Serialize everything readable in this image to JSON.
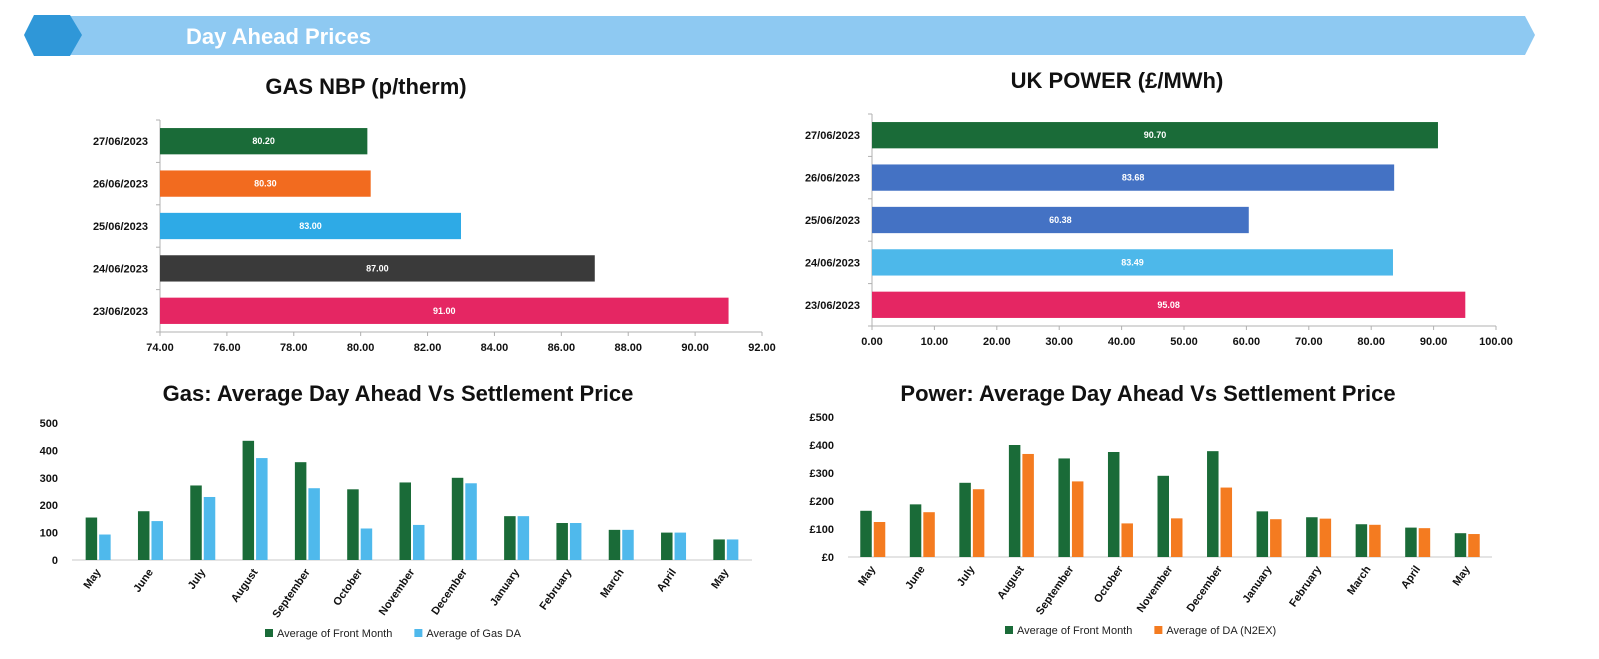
{
  "header": {
    "title": "Day Ahead Prices",
    "band_color": "#8ec9f2",
    "cap_color": "#2f97d8"
  },
  "colors": {
    "green": "#1a6b38",
    "orange": "#f26b1f",
    "sky": "#2eaae6",
    "dark": "#3a3a3a",
    "pink": "#e52663",
    "blue": "#4472c4",
    "light_blue": "#4db8ea",
    "bar_orange": "#f47b20",
    "bar_sky": "#4fb9ec"
  },
  "chart_data": [
    {
      "type": "bar",
      "orientation": "horizontal",
      "title": "GAS NBP (p/therm)",
      "categories": [
        "27/06/2023",
        "26/06/2023",
        "25/06/2023",
        "24/06/2023",
        "23/06/2023"
      ],
      "values": [
        80.2,
        80.3,
        83.0,
        87.0,
        91.0
      ],
      "value_labels": [
        "80.20",
        "80.30",
        "83.00",
        "87.00",
        "91.00"
      ],
      "bar_colors": [
        "#1a6b38",
        "#f26b1f",
        "#2eaae6",
        "#3a3a3a",
        "#e52663"
      ],
      "xlim": [
        74,
        92
      ],
      "x_ticks": [
        "74.00",
        "76.00",
        "78.00",
        "80.00",
        "82.00",
        "84.00",
        "86.00",
        "88.00",
        "90.00",
        "92.00"
      ],
      "grid": false
    },
    {
      "type": "bar",
      "orientation": "horizontal",
      "title": "UK POWER (£/MWh)",
      "categories": [
        "27/06/2023",
        "26/06/2023",
        "25/06/2023",
        "24/06/2023",
        "23/06/2023"
      ],
      "values": [
        90.7,
        83.68,
        60.38,
        83.49,
        95.08
      ],
      "value_labels": [
        "90.70",
        "83.68",
        "60.38",
        "83.49",
        "95.08"
      ],
      "bar_colors": [
        "#1a6b38",
        "#4472c4",
        "#4472c4",
        "#4db8ea",
        "#e52663"
      ],
      "xlim": [
        0,
        100
      ],
      "x_ticks": [
        "0.00",
        "10.00",
        "20.00",
        "30.00",
        "40.00",
        "50.00",
        "60.00",
        "70.00",
        "80.00",
        "90.00",
        "100.00"
      ],
      "grid": false
    },
    {
      "type": "bar",
      "title": "Gas: Average Day Ahead Vs Settlement Price",
      "categories": [
        "May",
        "June",
        "July",
        "August",
        "September",
        "October",
        "November",
        "December",
        "January",
        "February",
        "March",
        "April",
        "May"
      ],
      "series": [
        {
          "name": "Average of Front Month",
          "color": "#1a6b38",
          "values": [
            155,
            178,
            272,
            435,
            357,
            258,
            283,
            300,
            160,
            135,
            110,
            100,
            75
          ]
        },
        {
          "name": "Average of Gas DA",
          "color": "#4fb9ec",
          "values": [
            93,
            142,
            230,
            372,
            262,
            115,
            128,
            280,
            160,
            135,
            110,
            100,
            75
          ]
        }
      ],
      "ylim": [
        0,
        500
      ],
      "y_ticks": [
        "0",
        "100",
        "200",
        "300",
        "400",
        "500"
      ],
      "legend": "bottom",
      "grid": false
    },
    {
      "type": "bar",
      "title": "Power: Average Day Ahead Vs Settlement Price",
      "categories": [
        "May",
        "June",
        "July",
        "August",
        "September",
        "October",
        "November",
        "December",
        "January",
        "February",
        "March",
        "April",
        "May"
      ],
      "series": [
        {
          "name": "Average of Front Month",
          "color": "#1a6b38",
          "values": [
            165,
            188,
            265,
            400,
            352,
            375,
            290,
            378,
            163,
            142,
            117,
            105,
            85
          ]
        },
        {
          "name": "Average of DA (N2EX)",
          "color": "#f47b20",
          "values": [
            125,
            160,
            242,
            368,
            270,
            120,
            138,
            248,
            135,
            137,
            115,
            103,
            82
          ]
        }
      ],
      "ylim": [
        0,
        500
      ],
      "y_ticks": [
        "£0",
        "£100",
        "£200",
        "£300",
        "£400",
        "£500"
      ],
      "legend": "bottom",
      "grid": false
    }
  ]
}
